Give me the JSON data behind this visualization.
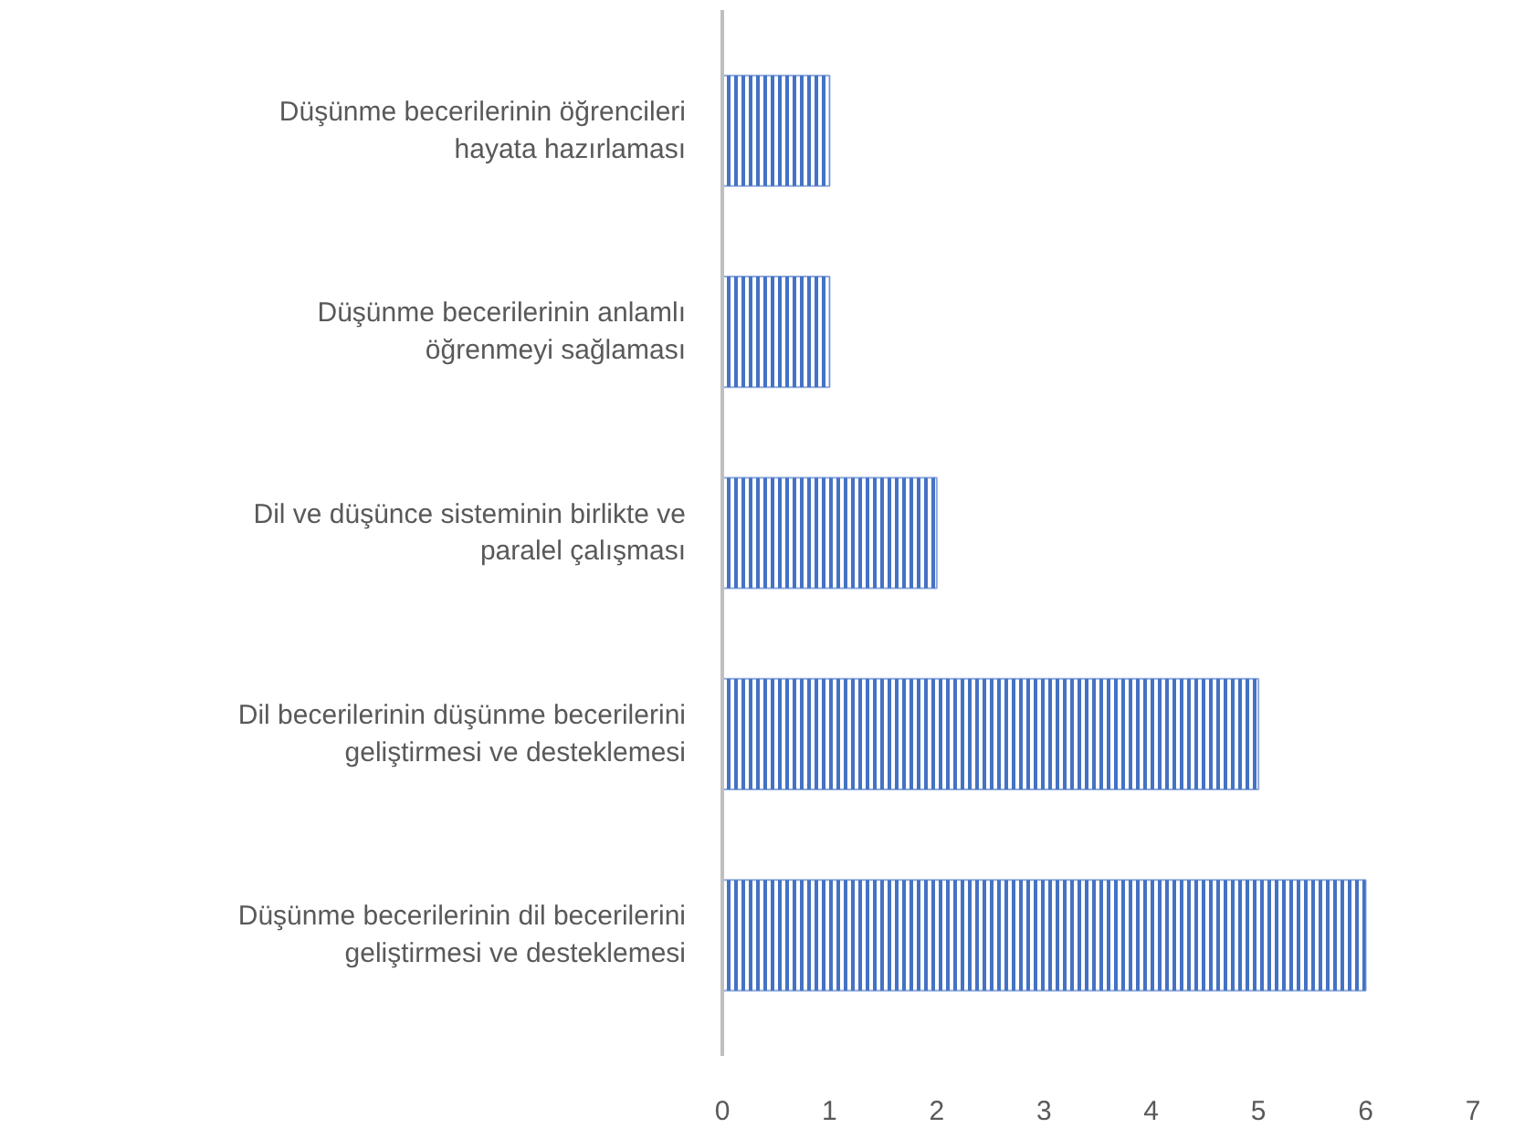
{
  "chart_data": {
    "type": "bar",
    "orientation": "horizontal",
    "categories": [
      "Düşünme becerilerinin öğrencileri hayata hazırlaması",
      "Düşünme becerilerinin anlamlı öğrenmeyi sağlaması",
      "Dil ve düşünce sisteminin birlikte ve paralel çalışması",
      "Dil becerilerinin düşünme becerilerini geliştirmesi ve desteklemesi",
      "Düşünme becerilerinin dil becerilerini geliştirmesi ve desteklemesi"
    ],
    "values": [
      1,
      1,
      2,
      5,
      6
    ],
    "color": "#4472c4",
    "xlim": [
      0,
      7
    ],
    "xticks": [
      0,
      1,
      2,
      3,
      4,
      5,
      6,
      7
    ],
    "grid": false
  }
}
